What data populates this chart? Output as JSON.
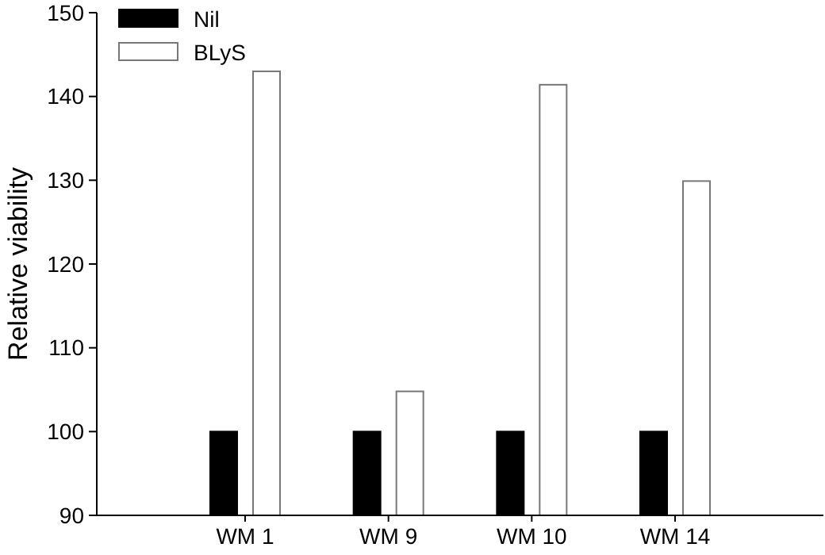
{
  "chart_data": {
    "type": "bar",
    "ylabel": "Relative viability",
    "categories": [
      "WM 1",
      "WM 9",
      "WM 10",
      "WM 14"
    ],
    "series": [
      {
        "name": "Nil",
        "color": "#000000",
        "values": [
          100,
          100,
          100,
          100
        ]
      },
      {
        "name": "BLyS",
        "color": "#ffffff",
        "values": [
          143,
          104.8,
          141.4,
          129.9
        ]
      }
    ],
    "ylim": [
      90,
      150
    ],
    "yticks": [
      90,
      100,
      110,
      120,
      130,
      140,
      150
    ],
    "grid": false,
    "legend": "top left"
  }
}
